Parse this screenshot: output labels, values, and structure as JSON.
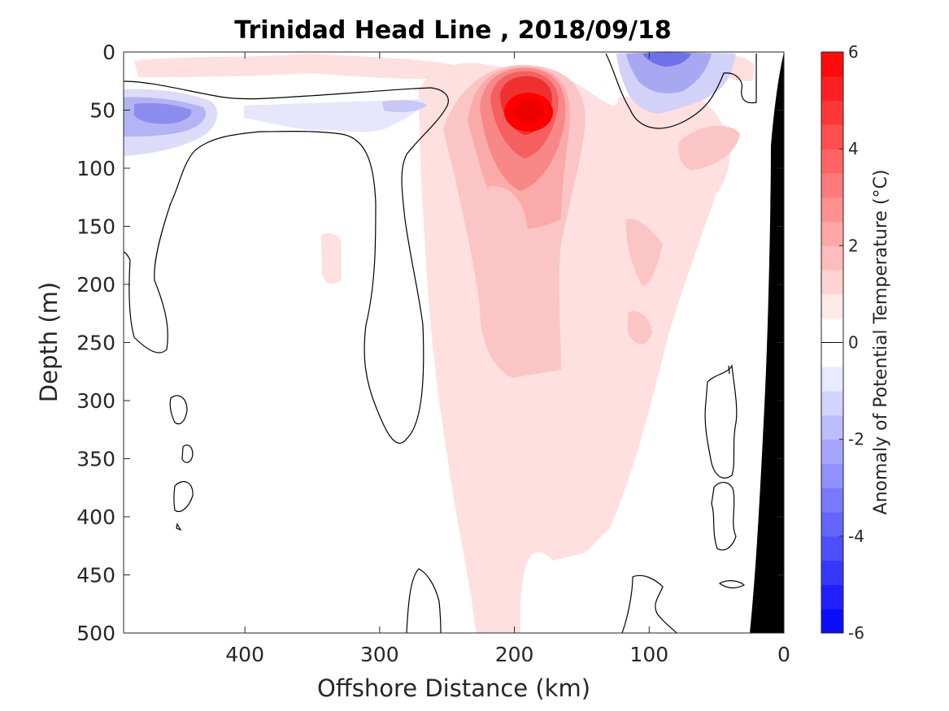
{
  "chart_data": {
    "type": "contourf",
    "title": "Trinidad Head Line , 2018/09/18",
    "xlabel": "Offshore Distance (km)",
    "ylabel": "Depth (m)",
    "xlim": [
      490,
      0
    ],
    "ylim": [
      0,
      500
    ],
    "x_ticks": [
      400,
      300,
      200,
      100,
      0
    ],
    "y_ticks": [
      0,
      50,
      100,
      150,
      200,
      250,
      300,
      350,
      400,
      450,
      500
    ],
    "x_reversed": true,
    "y_reversed": true,
    "colorbar": {
      "label": "Anomaly of Potential Temperature (°C)",
      "range": [
        -6,
        6
      ],
      "tick_values": [
        6,
        4,
        2,
        0,
        -2,
        -4,
        -6
      ],
      "levels": [
        -6,
        -5.5,
        -5,
        -4.5,
        -4,
        -3.5,
        -3,
        -2.5,
        -2,
        -1.5,
        -1,
        -0.5,
        0,
        0.5,
        1,
        1.5,
        2,
        2.5,
        3,
        3.5,
        4,
        4.5,
        5,
        5.5,
        6
      ],
      "cmap": "blue-white-red",
      "neg_color": "#0000ff",
      "pos_color": "#ff0000"
    },
    "features": [
      {
        "name": "warm core",
        "center_km": 190,
        "center_depth_m": 55,
        "max_anomaly": 6
      },
      {
        "name": "warm plume",
        "km_range": [
          140,
          250
        ],
        "depth_range_m": [
          80,
          500
        ],
        "anomaly": 0.75
      },
      {
        "name": "cold lens west",
        "center_km": 460,
        "center_depth_m": 50,
        "min_anomaly": -2.5
      },
      {
        "name": "cold lens nearshore",
        "center_km": 85,
        "center_depth_m": 25,
        "min_anomaly": -3
      },
      {
        "name": "zero contour",
        "anomaly": 0,
        "style": "black line"
      }
    ],
    "bathymetry_color": "#000000",
    "grid": false
  }
}
